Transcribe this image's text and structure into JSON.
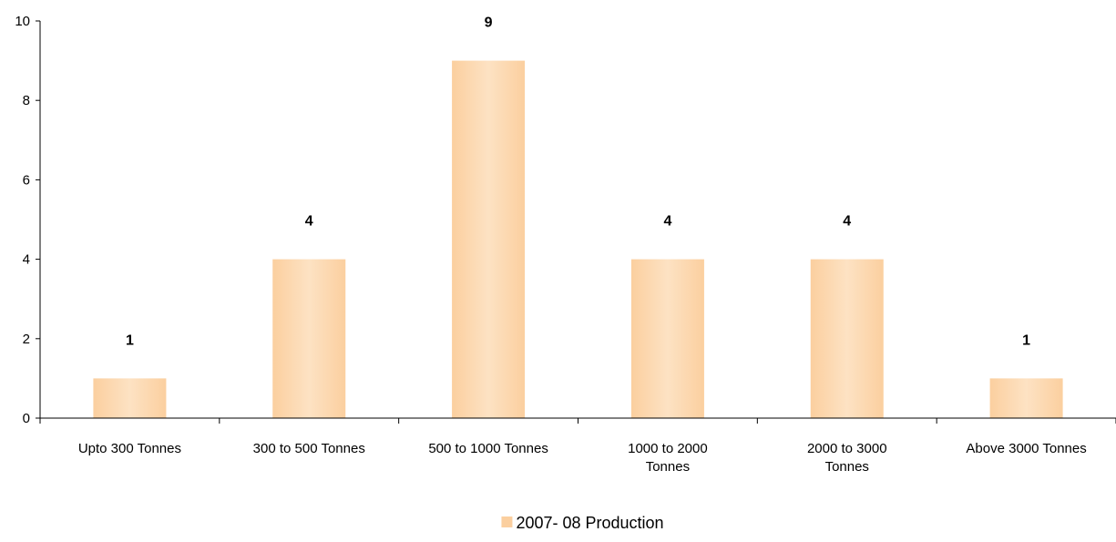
{
  "chart_data": {
    "type": "bar",
    "categories": [
      [
        "Upto 300 Tonnes"
      ],
      [
        "300 to 500 Tonnes"
      ],
      [
        "500 to 1000 Tonnes"
      ],
      [
        "1000 to 2000",
        "Tonnes"
      ],
      [
        "2000 to 3000",
        "Tonnes"
      ],
      [
        "Above 3000 Tonnes"
      ]
    ],
    "series": [
      {
        "name": "2007- 08 Production",
        "values": [
          1,
          4,
          9,
          4,
          4,
          1
        ],
        "color": "#fbcf9f",
        "color_light": "#fde2c3"
      }
    ],
    "data_labels": [
      "1",
      "4",
      "9",
      "4",
      "4",
      "1"
    ],
    "yticks": [
      "0",
      "2",
      "4",
      "6",
      "8",
      "10"
    ],
    "ytick_values": [
      0,
      2,
      4,
      6,
      8,
      10
    ],
    "ylim": [
      0,
      10
    ],
    "grid": false,
    "legend_position": "bottom-center",
    "title": "",
    "xlabel": "",
    "ylabel": ""
  }
}
